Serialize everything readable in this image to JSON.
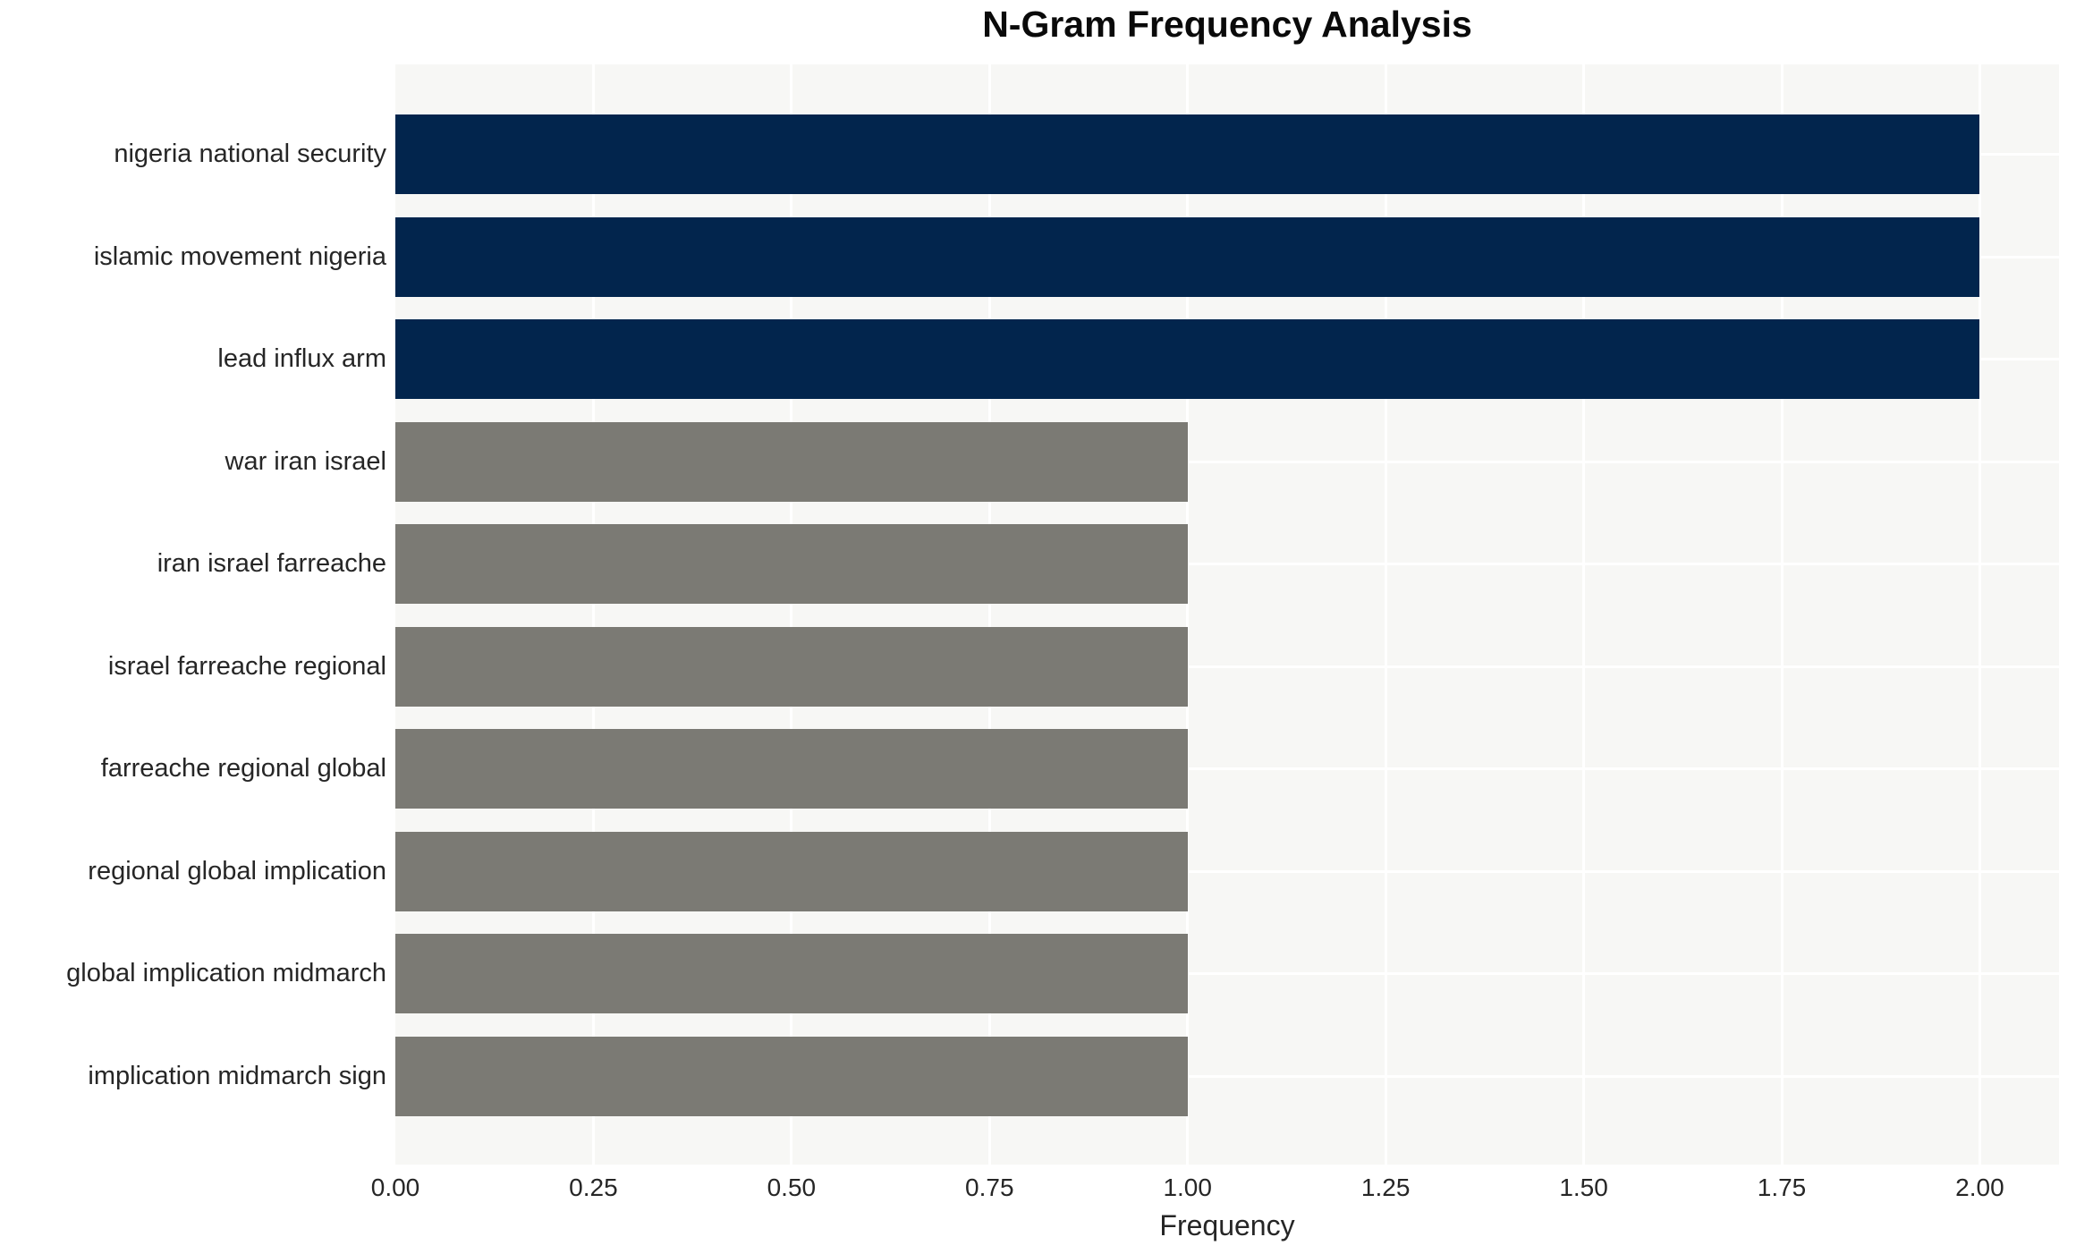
{
  "chart_data": {
    "type": "bar",
    "orientation": "horizontal",
    "title": "N-Gram Frequency Analysis",
    "xlabel": "Frequency",
    "ylabel": "",
    "categories": [
      "nigeria national security",
      "islamic movement nigeria",
      "lead influx arm",
      "war iran israel",
      "iran israel farreache",
      "israel farreache regional",
      "farreache regional global",
      "regional global implication",
      "global implication midmarch",
      "implication midmarch sign"
    ],
    "values": [
      2,
      2,
      2,
      1,
      1,
      1,
      1,
      1,
      1,
      1
    ],
    "bar_colors": [
      "#02254d",
      "#02254d",
      "#02254d",
      "#7b7a74",
      "#7b7a74",
      "#7b7a74",
      "#7b7a74",
      "#7b7a74",
      "#7b7a74",
      "#7b7a74"
    ],
    "xlim": [
      0,
      2.1
    ],
    "xticks": [
      {
        "v": 0.0,
        "label": "0.00"
      },
      {
        "v": 0.25,
        "label": "0.25"
      },
      {
        "v": 0.5,
        "label": "0.50"
      },
      {
        "v": 0.75,
        "label": "0.75"
      },
      {
        "v": 1.0,
        "label": "1.00"
      },
      {
        "v": 1.25,
        "label": "1.25"
      },
      {
        "v": 1.5,
        "label": "1.50"
      },
      {
        "v": 1.75,
        "label": "1.75"
      },
      {
        "v": 2.0,
        "label": "2.00"
      }
    ],
    "grid": true,
    "legend_position": "none",
    "colors": {
      "plot_background": "#f7f7f5",
      "grid": "#ffffff",
      "text": "#262626",
      "title": "#0a0a0a",
      "bar_high": "#02254d",
      "bar_low": "#7b7a74"
    }
  }
}
